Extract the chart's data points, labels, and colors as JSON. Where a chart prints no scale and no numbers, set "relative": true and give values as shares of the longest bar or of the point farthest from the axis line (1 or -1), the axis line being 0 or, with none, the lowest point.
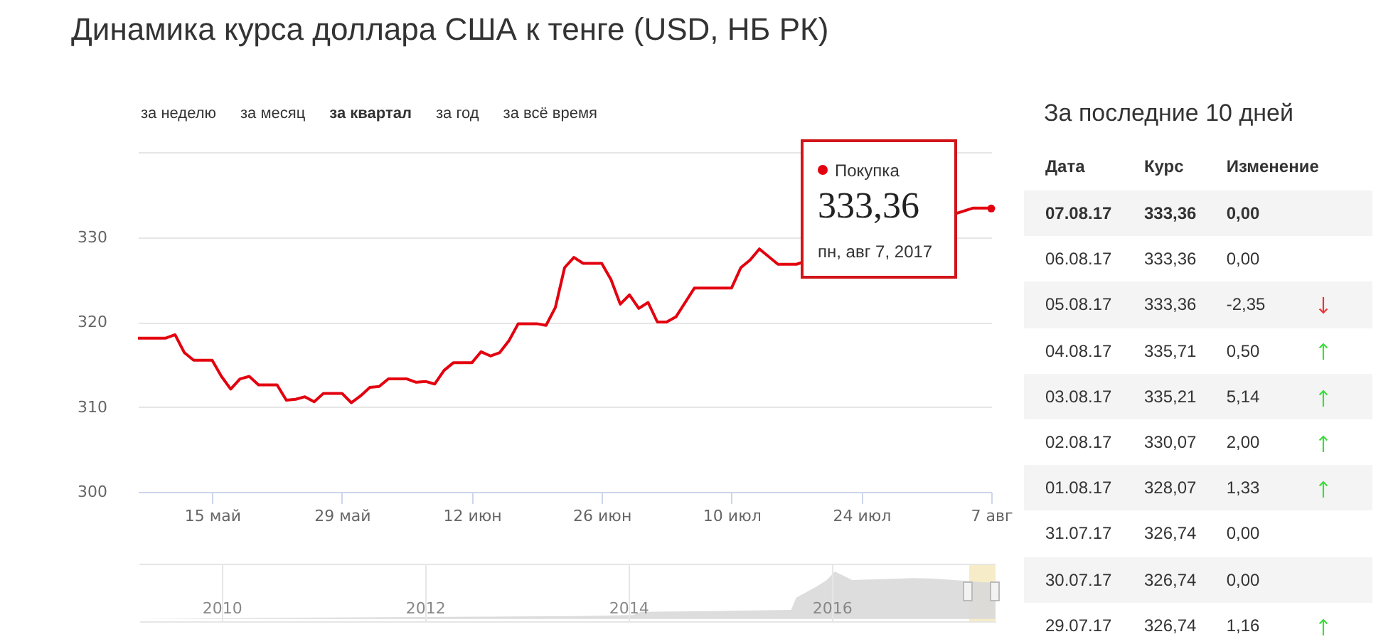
{
  "chart_data": [
    {
      "type": "line",
      "title": "Динамика курса доллара США к тенге (USD, НБ РК)",
      "annotations": [
        "за неделю",
        "за месяц",
        "за квартал",
        "за год",
        "за всё время",
        {
          "text": "333,36",
          "x": "2017-08-07",
          "y": 333.36
        },
        "пн, авг 7, 2017"
      ],
      "x": [
        "2017-05-07",
        "2017-05-10",
        "2017-05-11",
        "2017-05-12",
        "2017-05-13",
        "2017-05-15",
        "2017-05-16",
        "2017-05-17",
        "2017-05-18",
        "2017-05-19",
        "2017-05-20",
        "2017-05-22",
        "2017-05-23",
        "2017-05-24",
        "2017-05-25",
        "2017-05-26",
        "2017-05-27",
        "2017-05-29",
        "2017-05-30",
        "2017-05-31",
        "2017-06-01",
        "2017-06-02",
        "2017-06-03",
        "2017-06-05",
        "2017-06-06",
        "2017-06-07",
        "2017-06-08",
        "2017-06-09",
        "2017-06-10",
        "2017-06-12",
        "2017-06-13",
        "2017-06-14",
        "2017-06-15",
        "2017-06-16",
        "2017-06-17",
        "2017-06-19",
        "2017-06-20",
        "2017-06-21",
        "2017-06-22",
        "2017-06-23",
        "2017-06-24",
        "2017-06-26",
        "2017-06-27",
        "2017-06-28",
        "2017-06-29",
        "2017-06-30",
        "2017-07-01",
        "2017-07-02",
        "2017-07-03",
        "2017-07-04",
        "2017-07-05",
        "2017-07-06",
        "2017-07-10",
        "2017-07-11",
        "2017-07-12",
        "2017-07-13",
        "2017-07-15",
        "2017-07-17",
        "2017-07-18",
        "2017-08-05",
        "2017-08-06",
        "2017-08-07"
      ],
      "series": [
        {
          "name": "Покупка",
          "color": "#e3000f",
          "values": [
            318.1,
            318.1,
            318.5,
            316.4,
            315.5,
            315.5,
            313.6,
            312.1,
            313.3,
            313.6,
            312.6,
            312.6,
            310.8,
            310.9,
            311.2,
            310.6,
            311.6,
            311.6,
            310.5,
            311.3,
            312.3,
            312.4,
            313.3,
            313.3,
            312.9,
            313.0,
            312.7,
            314.3,
            315.2,
            315.2,
            316.5,
            316.0,
            316.4,
            317.8,
            319.8,
            319.8,
            319.6,
            321.7,
            326.4,
            327.6,
            326.9,
            326.9,
            325.0,
            322.1,
            323.2,
            321.6,
            322.3,
            320.0,
            320.0,
            320.6,
            322.3,
            324.0,
            324.0,
            326.4,
            327.3,
            328.6,
            326.8,
            326.8,
            null,
            333.4,
            333.4,
            333.4
          ]
        }
      ],
      "xlim": [
        "2017-05-07",
        "2017-08-07"
      ],
      "xticks": [
        {
          "value": "2017-05-15",
          "label": "15 май"
        },
        {
          "value": "2017-05-29",
          "label": "29 май"
        },
        {
          "value": "2017-06-12",
          "label": "12 июн"
        },
        {
          "value": "2017-06-26",
          "label": "26 июн"
        },
        {
          "value": "2017-07-10",
          "label": "10 июл"
        },
        {
          "value": "2017-07-24",
          "label": "24 июл"
        },
        {
          "value": "2017-08-07",
          "label": "7 авг"
        }
      ],
      "ylim": [
        300,
        340
      ],
      "yticks": [
        300,
        310,
        320,
        330,
        {
          "value": 340,
          "label": null
        }
      ],
      "grid": "y"
    },
    {
      "type": "area",
      "relative": true,
      "color": "#d9d9d9",
      "x": [
        2009.19,
        2010.5,
        2012.0,
        2013.5,
        2014.05,
        2014.12,
        2015.0,
        2015.6,
        2015.65,
        2015.85,
        2015.95,
        2016.03,
        2016.2,
        2016.5,
        2016.8,
        2017.0,
        2017.2,
        2017.45,
        2017.61
      ],
      "values": [
        0,
        0.02,
        0.04,
        0.06,
        0.08,
        0.15,
        0.17,
        0.19,
        0.45,
        0.68,
        0.82,
        1,
        0.82,
        0.84,
        0.86,
        0.85,
        0.82,
        0.78,
        0.76
      ],
      "xlim": [
        2009.19,
        2017.61
      ],
      "xticks": [
        2010,
        2012,
        2014,
        2016
      ],
      "grid": "x",
      "bands": [
        {
          "axis": "x",
          "from": 2017.35,
          "to": 2017.61,
          "color": "#f7ecc8"
        }
      ]
    },
    {
      "type": "other",
      "title": "За последние 10 дней",
      "xlabel": "Дата",
      "categories": [
        "07.08.17",
        "06.08.17",
        "05.08.17",
        "04.08.17",
        "03.08.17",
        "02.08.17",
        "01.08.17",
        "31.07.17",
        "30.07.17",
        "29.07.17"
      ],
      "series": [
        {
          "name": "Курс",
          "values": [
            333.36,
            333.36,
            333.36,
            335.71,
            335.21,
            330.07,
            328.07,
            326.74,
            326.74,
            326.74
          ],
          "value_labels": [
            "333,36",
            "333,36",
            "333,36",
            "335,71",
            "335,21",
            "330,07",
            "328,07",
            "326,74",
            "326,74",
            "326,74"
          ]
        },
        {
          "name": "Изменение",
          "values": [
            0,
            0,
            -2.35,
            0.5,
            5.14,
            2,
            1.33,
            0,
            0,
            1.16
          ],
          "value_labels": [
            "0,00",
            "0,00",
            "-2,35",
            "0,50",
            "5,14",
            "2,00",
            "1,33",
            "0,00",
            "0,00",
            "1,16"
          ]
        }
      ]
    }
  ]
}
